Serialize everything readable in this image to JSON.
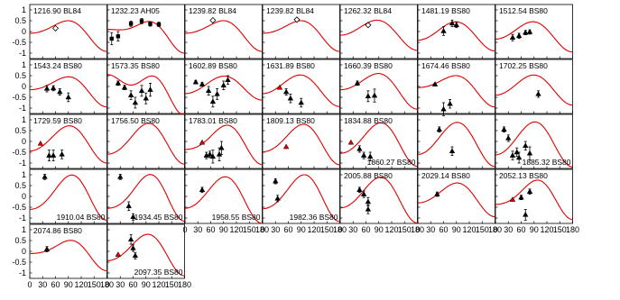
{
  "chart_data": {
    "type": "scatter",
    "layout": "small-multiples grid, 7 columns",
    "xlim": [
      0,
      180
    ],
    "ylim": [
      -1.25,
      1.25
    ],
    "x_ticks": [
      0,
      30,
      60,
      90,
      120,
      150,
      180
    ],
    "y_ticks": [
      -1,
      -0.5,
      0,
      0.5,
      1
    ],
    "x_tick_labels": [
      "0",
      "30",
      "60",
      "90",
      "120",
      "150",
      "180"
    ],
    "y_tick_labels": [
      "-1",
      "-0.5",
      "0",
      "0.5",
      "1"
    ],
    "colors": {
      "model_curve": "#e00000",
      "markers": "#000000",
      "diamond_face": "#ffffff"
    },
    "panels": [
      {
        "label": "1216.90 BL84",
        "label_pos": "top",
        "curve": [
          0,
          0.32,
          0.5,
          0.1
        ],
        "points": [
          {
            "x": 60,
            "y": 0.15,
            "m": "diamond"
          }
        ]
      },
      {
        "label": "1232.23 AH05",
        "label_pos": "top",
        "curve": [
          0,
          0.35,
          0.45,
          0.2
        ],
        "points": [
          {
            "x": 10,
            "y": -0.33,
            "e": 0.28,
            "m": "square"
          },
          {
            "x": 25,
            "y": -0.22,
            "e": 0.22,
            "m": "square"
          },
          {
            "x": 55,
            "y": 0.36,
            "e": 0.12,
            "m": "square"
          },
          {
            "x": 80,
            "y": 0.48,
            "e": 0.12,
            "m": "square"
          },
          {
            "x": 100,
            "y": 0.35,
            "e": 0.1,
            "m": "square"
          },
          {
            "x": 120,
            "y": 0.33,
            "e": 0.1,
            "m": "square"
          }
        ]
      },
      {
        "label": "1239.82 BL84",
        "label_pos": "top",
        "curve": [
          0,
          0.32,
          0.5,
          0.1
        ],
        "points": [
          {
            "x": 65,
            "y": 0.52,
            "m": "diamond"
          }
        ]
      },
      {
        "label": "1239.82 BL84",
        "label_pos": "top",
        "curve": [
          0,
          0.32,
          0.5,
          0.1
        ],
        "points": [
          {
            "x": 80,
            "y": 0.55,
            "m": "diamond"
          }
        ]
      },
      {
        "label": "1262.32 BL84",
        "label_pos": "top",
        "curve": [
          0,
          0.3,
          0.52,
          0.05
        ],
        "points": [
          {
            "x": 65,
            "y": 0.3,
            "m": "diamond"
          }
        ]
      },
      {
        "label": "1481.19 BS80",
        "label_pos": "top",
        "curve": [
          -0.1,
          0.2,
          0.55,
          0.05
        ],
        "points": [
          {
            "x": 60,
            "y": 0.02,
            "e": 0.2
          },
          {
            "x": 80,
            "y": 0.38,
            "e": 0.15
          },
          {
            "x": 90,
            "y": 0.3,
            "e": 0.12
          }
        ]
      },
      {
        "label": "1512.54 BS80",
        "label_pos": "top",
        "curve": [
          -0.1,
          0.25,
          0.55,
          0.05
        ],
        "points": [
          {
            "x": 40,
            "y": -0.28,
            "e": 0.15
          },
          {
            "x": 55,
            "y": -0.2,
            "e": 0.12
          },
          {
            "x": 70,
            "y": -0.05,
            "e": 0.1
          },
          {
            "x": 80,
            "y": -0.02,
            "e": 0.1
          }
        ]
      },
      {
        "label": "1543.24 BS80",
        "label_pos": "top",
        "curve": [
          -0.05,
          0.3,
          0.5,
          0.1
        ],
        "points": [
          {
            "x": 40,
            "y": -0.1,
            "e": 0.15
          },
          {
            "x": 55,
            "y": -0.08,
            "e": 0.12
          },
          {
            "x": 70,
            "y": -0.25,
            "e": 0.15
          },
          {
            "x": 90,
            "y": -0.5,
            "e": 0.2
          }
        ]
      },
      {
        "label": "1573.35 BS80",
        "label_pos": "top",
        "curve": [
          0,
          0.55,
          0.4,
          0.4
        ],
        "points": [
          {
            "x": 25,
            "y": 0.15,
            "e": 0.1
          },
          {
            "x": 40,
            "y": -0.05,
            "e": 0.1
          },
          {
            "x": 55,
            "y": -0.4,
            "e": 0.2
          },
          {
            "x": 65,
            "y": -0.75,
            "e": 0.25
          },
          {
            "x": 80,
            "y": -0.2,
            "e": 0.25
          },
          {
            "x": 90,
            "y": -0.55,
            "e": 0.25
          },
          {
            "x": 100,
            "y": -0.15,
            "e": 0.3
          }
        ]
      },
      {
        "label": "1602.89 BS80",
        "label_pos": "top",
        "curve": [
          0,
          0.1,
          0.48,
          0.05
        ],
        "points": [
          {
            "x": 25,
            "y": 0.2,
            "e": 0.08
          },
          {
            "x": 40,
            "y": 0.1,
            "e": 0.08
          },
          {
            "x": 55,
            "y": -0.2,
            "e": 0.2
          },
          {
            "x": 65,
            "y": -0.7,
            "e": 0.25
          },
          {
            "x": 75,
            "y": -0.35,
            "e": 0.25
          },
          {
            "x": 90,
            "y": 0.05,
            "e": 0.2
          },
          {
            "x": 100,
            "y": 0.3,
            "e": 0.2
          }
        ]
      },
      {
        "label": "1631.89 BS80",
        "label_pos": "top",
        "curve": [
          -0.05,
          0.25,
          0.58,
          0.05
        ],
        "points": [
          {
            "x": 40,
            "y": -0.05,
            "m": "red-triangle"
          },
          {
            "x": 55,
            "y": -0.25,
            "e": 0.15
          },
          {
            "x": 65,
            "y": -0.55,
            "e": 0.2
          },
          {
            "x": 90,
            "y": -0.75,
            "e": 0.2
          }
        ]
      },
      {
        "label": "1660.39 BS80",
        "label_pos": "top",
        "curve": [
          0,
          0.35,
          0.6,
          0.1
        ],
        "points": [
          {
            "x": 40,
            "y": 0.15,
            "e": 0.1
          },
          {
            "x": 65,
            "y": -0.45,
            "e": 0.25
          },
          {
            "x": 80,
            "y": -0.42,
            "e": 0.3
          }
        ]
      },
      {
        "label": "1674.46 BS80",
        "label_pos": "top",
        "curve": [
          0,
          0.35,
          0.5,
          0.1
        ],
        "points": [
          {
            "x": 40,
            "y": 0.1,
            "e": 0.05
          },
          {
            "x": 60,
            "y": -1.05,
            "e": 0.3
          },
          {
            "x": 75,
            "y": -0.8,
            "e": 0.2
          }
        ]
      },
      {
        "label": "1702.25 BS80",
        "label_pos": "top",
        "curve": [
          -0.05,
          0.18,
          0.58,
          0.05
        ],
        "points": [
          {
            "x": 100,
            "y": -0.35,
            "e": 0.15
          }
        ]
      },
      {
        "label": "1729.59 BS80",
        "label_pos": "top",
        "curve": [
          0,
          0.18,
          0.72,
          0.1
        ],
        "points": [
          {
            "x": 25,
            "y": -0.1,
            "m": "red-triangle"
          },
          {
            "x": 45,
            "y": -0.65,
            "e": 0.25
          },
          {
            "x": 55,
            "y": -0.65,
            "e": 0.25
          },
          {
            "x": 75,
            "y": -0.6,
            "e": 0.2
          }
        ]
      },
      {
        "label": "1756.50 BS80",
        "label_pos": "top",
        "curve": [
          0,
          0.08,
          0.82,
          0.15
        ],
        "points": []
      },
      {
        "label": "1783.01 BS80",
        "label_pos": "top",
        "curve": [
          0,
          0.15,
          0.72,
          0.2
        ],
        "points": [
          {
            "x": 40,
            "y": -0.05,
            "m": "red-triangle"
          },
          {
            "x": 50,
            "y": -0.65,
            "e": 0.15
          },
          {
            "x": 58,
            "y": -0.6,
            "e": 0.15
          },
          {
            "x": 65,
            "y": -0.7,
            "e": 0.3
          },
          {
            "x": 80,
            "y": -0.6,
            "e": 0.3
          },
          {
            "x": 85,
            "y": -0.3,
            "e": 0.3
          }
        ]
      },
      {
        "label": "1809.13 BS80",
        "label_pos": "top",
        "curve": [
          0,
          0.15,
          0.78,
          0.15
        ],
        "points": [
          {
            "x": 55,
            "y": -0.25,
            "m": "red-triangle"
          }
        ]
      },
      {
        "label": "1834.88 BS80",
        "label_pos": "top",
        "label2": "1860.27 BS80",
        "label2_pos": "bottom-right",
        "curve": [
          0,
          0.15,
          0.85,
          0.15
        ],
        "points": [
          {
            "x": 25,
            "y": -0.05,
            "m": "red-triangle"
          },
          {
            "x": 45,
            "y": -0.35,
            "e": 0.15
          },
          {
            "x": 55,
            "y": -0.65,
            "e": 0.15
          },
          {
            "x": 70,
            "y": -0.7,
            "e": 0.2
          }
        ]
      },
      {
        "label": "",
        "curve": [
          0,
          0.18,
          0.88,
          0.1
        ],
        "points": [
          {
            "x": 50,
            "y": 0.55,
            "e": 0.12
          },
          {
            "x": 80,
            "y": -0.45,
            "e": 0.2
          }
        ]
      },
      {
        "label": "1885.32 BS80",
        "label_pos": "bottom-right",
        "curve": [
          0,
          0.18,
          0.9,
          0.1
        ],
        "points": [
          {
            "x": 20,
            "y": 0.55,
            "e": 0.12
          },
          {
            "x": 30,
            "y": 0.15,
            "e": 0.15
          },
          {
            "x": 40,
            "y": -0.65,
            "e": 0.2
          },
          {
            "x": 50,
            "y": -0.5,
            "e": 0.2
          },
          {
            "x": 55,
            "y": -0.75,
            "e": 0.25
          },
          {
            "x": 70,
            "y": -0.2,
            "e": 0.2
          },
          {
            "x": 80,
            "y": -0.55,
            "e": 0.3
          }
        ]
      },
      {
        "label": "1910.04 BS80",
        "label_pos": "bottom-right",
        "curve": [
          0.05,
          0.05,
          0.9,
          0.2
        ],
        "points": [
          {
            "x": 35,
            "y": 0.9,
            "e": 0.12
          }
        ]
      },
      {
        "label": "1934.45 BS80",
        "label_pos": "bottom-right",
        "curve": [
          0.05,
          0.05,
          0.9,
          0.25
        ],
        "points": [
          {
            "x": 30,
            "y": 0.9,
            "e": 0.12
          },
          {
            "x": 50,
            "y": -0.45,
            "e": 0.2
          },
          {
            "x": 60,
            "y": -0.95,
            "e": 0.15
          }
        ]
      },
      {
        "label": "1958.55 BS80",
        "label_pos": "bottom-right",
        "curve": [
          0,
          0.2,
          0.9,
          0.15
        ],
        "points": [
          {
            "x": 40,
            "y": 0.3,
            "e": 0.12
          }
        ]
      },
      {
        "label": "1982.36 BS80",
        "label_pos": "bottom-right",
        "curve": [
          0.05,
          0.1,
          0.92,
          0.2
        ],
        "points": [
          {
            "x": 30,
            "y": 0.7,
            "e": 0.12
          },
          {
            "x": 35,
            "y": -0.1,
            "e": 0.15
          }
        ]
      },
      {
        "label": "2005.88 BS80",
        "label_pos": "top",
        "curve": [
          0,
          0.2,
          0.88,
          0.15
        ],
        "points": [
          {
            "x": 45,
            "y": 0.3,
            "e": 0.12
          },
          {
            "x": 55,
            "y": 0.1,
            "e": 0.15
          },
          {
            "x": 65,
            "y": -0.25,
            "e": 0.2
          },
          {
            "x": 65,
            "y": -0.6,
            "e": 0.2
          }
        ]
      },
      {
        "label": "2029.14 BS80",
        "label_pos": "top",
        "curve": [
          0,
          0.22,
          0.62,
          0.1
        ],
        "points": [
          {
            "x": 45,
            "y": 0.1,
            "e": 0.1
          }
        ]
      },
      {
        "label": "2052.13 BS80",
        "label_pos": "top",
        "curve": [
          0,
          0.15,
          0.72,
          0.2
        ],
        "points": [
          {
            "x": 40,
            "y": -0.15,
            "m": "red-triangle"
          },
          {
            "x": 60,
            "y": -0.05,
            "e": 0.1
          },
          {
            "x": 70,
            "y": -0.85,
            "e": 0.25
          },
          {
            "x": 80,
            "y": 0.22,
            "e": 0.12
          }
        ]
      },
      {
        "label": "2074.86 BS80",
        "label_pos": "top",
        "curve": [
          0,
          0.25,
          0.5,
          0.15
        ],
        "points": [
          {
            "x": 40,
            "y": 0.1,
            "e": 0.12
          }
        ]
      },
      {
        "label": "2097.35 BS80",
        "label_pos": "bottom-right",
        "curve": [
          0,
          0.2,
          0.78,
          0.15
        ],
        "points": [
          {
            "x": 25,
            "y": -0.15,
            "m": "red-triangle"
          },
          {
            "x": 55,
            "y": 0.55,
            "e": 0.22
          },
          {
            "x": 60,
            "y": 0.15,
            "e": 0.15
          },
          {
            "x": 65,
            "y": -0.2,
            "e": 0.15
          }
        ]
      }
    ]
  }
}
